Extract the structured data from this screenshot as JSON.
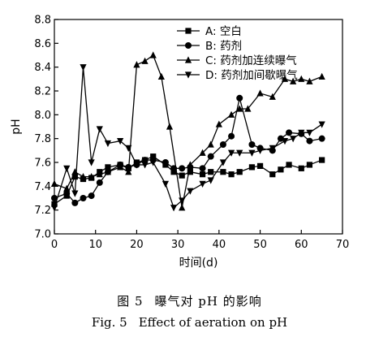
{
  "chart_data": {
    "type": "line",
    "xlabel": "时间(d)",
    "ylabel": "pH",
    "xlim": [
      0,
      70
    ],
    "ylim": [
      7.0,
      8.8
    ],
    "xticks": [
      0,
      10,
      20,
      30,
      40,
      50,
      60,
      70
    ],
    "yticks": [
      7.0,
      7.2,
      7.4,
      7.6,
      7.8,
      8.0,
      8.2,
      8.4,
      8.6,
      8.8
    ],
    "grid": false,
    "legend_position": "top-right",
    "series": [
      {
        "name": "A: 空白",
        "marker": "square",
        "x": [
          0,
          3,
          5,
          7,
          9,
          11,
          13,
          16,
          18,
          20,
          22,
          24,
          27,
          29,
          31,
          33,
          36,
          38,
          41,
          43,
          45,
          48,
          50,
          53,
          55,
          57,
          60,
          62,
          65
        ],
        "y": [
          7.25,
          7.32,
          7.48,
          7.46,
          7.47,
          7.52,
          7.56,
          7.58,
          7.55,
          7.6,
          7.62,
          7.65,
          7.58,
          7.52,
          7.49,
          7.52,
          7.5,
          7.52,
          7.52,
          7.5,
          7.52,
          7.56,
          7.57,
          7.5,
          7.54,
          7.58,
          7.55,
          7.58,
          7.62
        ]
      },
      {
        "name": "B: 药剂",
        "marker": "circle",
        "x": [
          0,
          3,
          5,
          7,
          9,
          11,
          13,
          16,
          18,
          20,
          22,
          24,
          27,
          29,
          31,
          33,
          36,
          38,
          41,
          43,
          45,
          48,
          50,
          53,
          55,
          57,
          60,
          62,
          65
        ],
        "y": [
          7.3,
          7.34,
          7.26,
          7.3,
          7.32,
          7.43,
          7.52,
          7.58,
          7.56,
          7.58,
          7.62,
          7.62,
          7.6,
          7.55,
          7.55,
          7.56,
          7.55,
          7.65,
          7.75,
          7.82,
          8.14,
          7.75,
          7.72,
          7.7,
          7.8,
          7.85,
          7.84,
          7.78,
          7.8
        ]
      },
      {
        "name": "C: 药剂加连续曝气",
        "marker": "triangle-up",
        "x": [
          0,
          3,
          5,
          7,
          9,
          11,
          13,
          16,
          18,
          20,
          22,
          24,
          26,
          28,
          31,
          33,
          36,
          38,
          40,
          43,
          45,
          47,
          50,
          53,
          56,
          58,
          60,
          62,
          65
        ],
        "y": [
          7.42,
          7.38,
          7.52,
          7.48,
          7.48,
          7.5,
          7.52,
          7.56,
          7.52,
          8.42,
          8.45,
          8.5,
          8.32,
          7.9,
          7.22,
          7.58,
          7.68,
          7.75,
          7.92,
          8.0,
          8.05,
          8.05,
          8.18,
          8.15,
          8.3,
          8.28,
          8.3,
          8.28,
          8.32
        ]
      },
      {
        "name": "D: 药剂加间歇曝气",
        "marker": "triangle-down",
        "x": [
          0,
          3,
          5,
          7,
          9,
          11,
          13,
          16,
          18,
          20,
          22,
          24,
          27,
          29,
          31,
          33,
          36,
          38,
          41,
          43,
          45,
          48,
          50,
          53,
          56,
          58,
          60,
          62,
          65
        ],
        "y": [
          7.22,
          7.55,
          7.34,
          8.4,
          7.6,
          7.88,
          7.76,
          7.78,
          7.72,
          7.58,
          7.58,
          7.6,
          7.42,
          7.22,
          7.28,
          7.36,
          7.42,
          7.45,
          7.6,
          7.68,
          7.68,
          7.68,
          7.7,
          7.72,
          7.78,
          7.8,
          7.85,
          7.85,
          7.92
        ]
      }
    ]
  },
  "caption": {
    "cn_label": "图 5",
    "cn_text": "曝气对 pH 的影响",
    "en_label": "Fig. 5",
    "en_text": "Effect of aeration on pH"
  }
}
